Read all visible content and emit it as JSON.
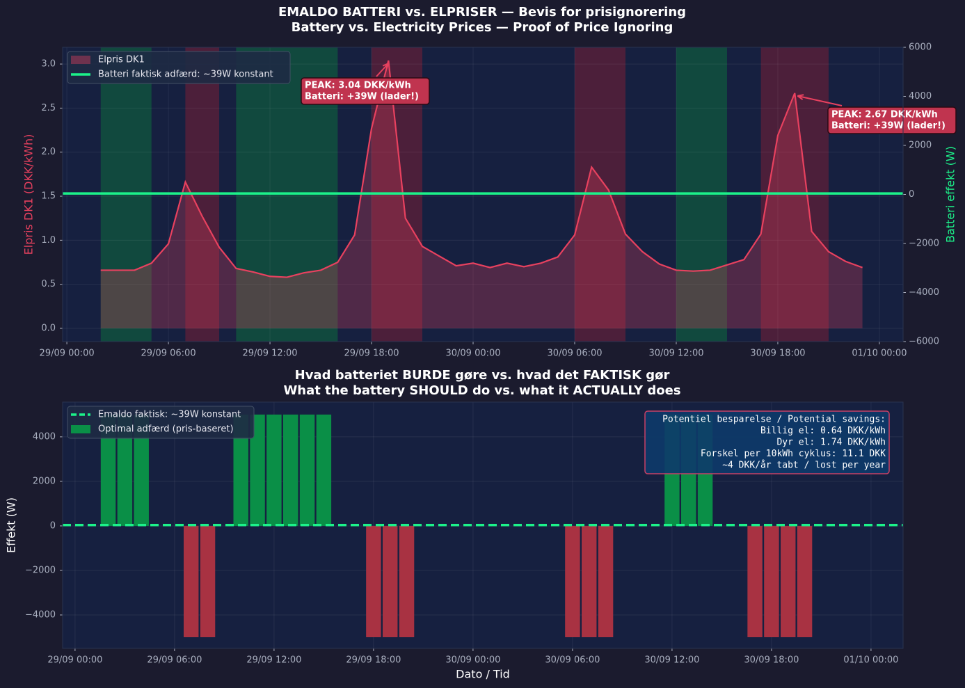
{
  "chart_data": [
    {
      "type": "line",
      "title": [
        "EMALDO BATTERI vs. ELPRISER — Bevis for prisignorering",
        "Battery vs. Electricity Prices — Proof of Price Ignoring"
      ],
      "ylabel": "Elpris DK1 (DKK/kWh)",
      "y2label": "Batteri effekt (W)",
      "x": [
        "29/09 02:00",
        "29/09 03:00",
        "29/09 04:00",
        "29/09 05:00",
        "29/09 06:00",
        "29/09 07:00",
        "29/09 08:00",
        "29/09 09:00",
        "29/09 10:00",
        "29/09 11:00",
        "29/09 12:00",
        "29/09 13:00",
        "29/09 14:00",
        "29/09 15:00",
        "29/09 16:00",
        "29/09 17:00",
        "29/09 18:00",
        "29/09 19:00",
        "29/09 20:00",
        "29/09 21:00",
        "29/09 22:00",
        "29/09 23:00",
        "30/09 00:00",
        "30/09 01:00",
        "30/09 02:00",
        "30/09 03:00",
        "30/09 04:00",
        "30/09 05:00",
        "30/09 06:00",
        "30/09 07:00",
        "30/09 08:00",
        "30/09 09:00",
        "30/09 10:00",
        "30/09 11:00",
        "30/09 12:00",
        "30/09 13:00",
        "30/09 14:00",
        "30/09 15:00",
        "30/09 16:00",
        "30/09 17:00",
        "30/09 18:00",
        "30/09 19:00",
        "30/09 20:00",
        "30/09 21:00",
        "30/09 22:00",
        "30/09 23:00"
      ],
      "series": [
        {
          "name": "Elpris DK1",
          "color": "#e8415f",
          "values": [
            0.66,
            0.66,
            0.66,
            0.74,
            0.96,
            1.66,
            1.27,
            0.92,
            0.68,
            0.64,
            0.59,
            0.58,
            0.63,
            0.66,
            0.75,
            1.06,
            2.27,
            3.04,
            1.25,
            0.93,
            0.82,
            0.71,
            0.74,
            0.69,
            0.74,
            0.7,
            0.74,
            0.81,
            1.06,
            1.83,
            1.57,
            1.07,
            0.87,
            0.73,
            0.66,
            0.65,
            0.66,
            0.72,
            0.78,
            1.07,
            2.19,
            2.67,
            1.1,
            0.87,
            0.76,
            0.69
          ]
        }
      ],
      "hline": {
        "name": "Batteri faktisk adfærd: ~39W konstant",
        "value": 39,
        "color": "#1cf28a",
        "axis": "y2"
      },
      "spans": [
        {
          "start": "29/09 02:00",
          "end": "29/09 05:00",
          "color": "#0e6b3c"
        },
        {
          "start": "29/09 07:00",
          "end": "29/09 09:00",
          "color": "#7a1f35"
        },
        {
          "start": "29/09 10:00",
          "end": "29/09 16:00",
          "color": "#0e6b3c"
        },
        {
          "start": "29/09 18:00",
          "end": "29/09 21:00",
          "color": "#7a1f35"
        },
        {
          "start": "30/09 06:00",
          "end": "30/09 09:00",
          "color": "#7a1f35"
        },
        {
          "start": "30/09 12:00",
          "end": "30/09 15:00",
          "color": "#0e6b3c"
        },
        {
          "start": "30/09 17:00",
          "end": "30/09 21:00",
          "color": "#7a1f35"
        }
      ],
      "annotations": [
        {
          "text": [
            "PEAK: 3.04 DKK/kWh",
            "Batteri: +39W (lader!)"
          ],
          "x": "29/09 19:00",
          "y": 3.04
        },
        {
          "text": [
            "PEAK: 2.67 DKK/kWh",
            "Batteri: +39W (lader!)"
          ],
          "x": "30/09 19:00",
          "y": 2.67
        }
      ],
      "xlim": [
        "28/09 23:45",
        "01/10 01:24"
      ],
      "xticks": [
        "29/09 00:00",
        "29/09 06:00",
        "29/09 12:00",
        "29/09 18:00",
        "30/09 00:00",
        "30/09 06:00",
        "30/09 12:00",
        "30/09 18:00",
        "01/10 00:00"
      ],
      "ylim": [
        -0.15,
        3.19
      ],
      "yticks": [
        {
          "value": 0,
          "label": "0.0"
        },
        0.5,
        {
          "value": 1,
          "label": "1.0"
        },
        1.5,
        {
          "value": 2,
          "label": "2.0"
        },
        2.5,
        {
          "value": 3,
          "label": "3.0"
        }
      ],
      "y2lim": [
        -6000,
        6000
      ],
      "y2ticks": [
        {
          "value": -6000,
          "label": "−6000"
        },
        {
          "value": -4000,
          "label": "−4000"
        },
        {
          "value": -2000,
          "label": "−2000"
        },
        0,
        2000,
        4000,
        6000
      ],
      "grid": true,
      "legend": "upper left"
    },
    {
      "type": "bar",
      "title": [
        "Hvad batteriet BURDE gøre vs. hvad det FAKTISK gør",
        "What the battery SHOULD do vs. what it ACTUALLY does"
      ],
      "xlabel": "Dato / Tid",
      "ylabel": "Effekt (W)",
      "x": [
        "29/09 02:00",
        "29/09 03:00",
        "29/09 04:00",
        "29/09 07:00",
        "29/09 08:00",
        "29/09 10:00",
        "29/09 11:00",
        "29/09 12:00",
        "29/09 13:00",
        "29/09 14:00",
        "29/09 15:00",
        "29/09 18:00",
        "29/09 19:00",
        "29/09 20:00",
        "30/09 06:00",
        "30/09 07:00",
        "30/09 08:00",
        "30/09 12:00",
        "30/09 13:00",
        "30/09 14:00",
        "30/09 17:00",
        "30/09 18:00",
        "30/09 19:00",
        "30/09 20:00"
      ],
      "series": [
        {
          "name": "Optimal adfærd (pris-baseret)",
          "color": "#0a8f47",
          "negative_color": "#a83242",
          "values": [
            5000,
            5000,
            5000,
            -5000,
            -5000,
            5000,
            5000,
            5000,
            5000,
            5000,
            5000,
            -5000,
            -5000,
            -5000,
            -5000,
            -5000,
            -5000,
            5000,
            5000,
            5000,
            -5000,
            -5000,
            -5000,
            -5000
          ]
        }
      ],
      "hline": {
        "name": "Emaldo faktisk: ~39W konstant",
        "value": 39,
        "color": "#1cf28a",
        "dashed": true
      },
      "textbox": [
        "Potentiel besparelse / Potential savings:",
        "Billig el: 0.64 DKK/kWh",
        "Dyr el: 1.74 DKK/kWh",
        "Forskel per 10kWh cyklus: 11.1 DKK",
        "~4 DKK/år tabt / lost per year"
      ],
      "xlim": [
        "28/09 23:15",
        "01/10 01:56"
      ],
      "xticks": [
        "29/09 00:00",
        "29/09 06:00",
        "29/09 12:00",
        "29/09 18:00",
        "30/09 00:00",
        "30/09 06:00",
        "30/09 12:00",
        "30/09 18:00",
        "01/10 00:00"
      ],
      "ylim": [
        -5500,
        5560
      ],
      "yticks": [
        {
          "value": -4000,
          "label": "−4000"
        },
        {
          "value": -2000,
          "label": "−2000"
        },
        0,
        2000,
        4000
      ],
      "grid": true,
      "legend": "upper left"
    }
  ]
}
